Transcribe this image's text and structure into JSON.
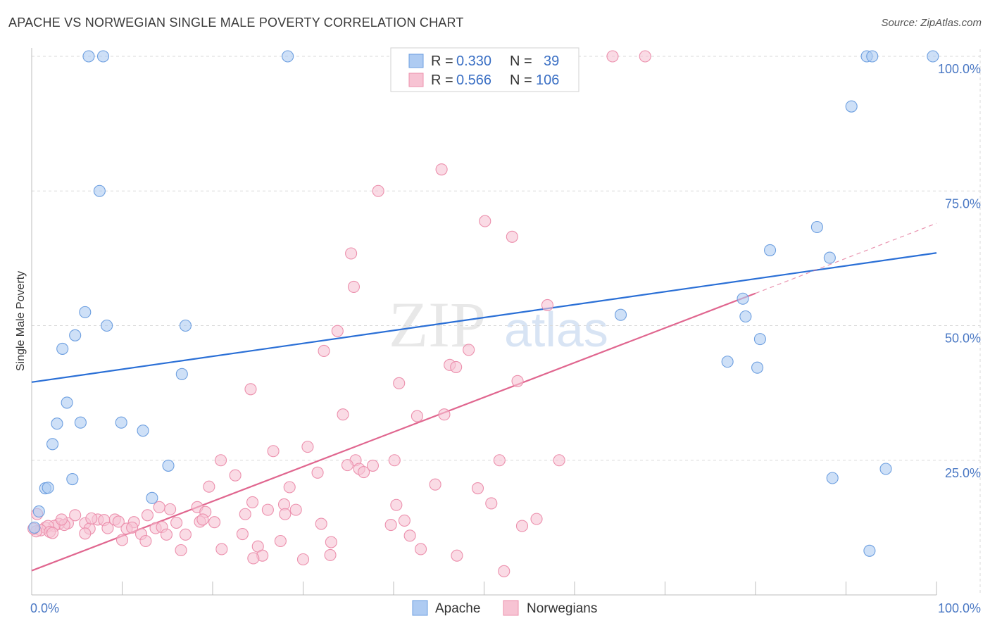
{
  "title": "APACHE VS NORWEGIAN SINGLE MALE POVERTY CORRELATION CHART",
  "source": "Source: ZipAtlas.com",
  "watermark": {
    "zip": "ZIP",
    "atlas": "atlas"
  },
  "colors": {
    "apache_fill": "#aecbf2",
    "apache_stroke": "#6d9fe0",
    "apache_line": "#2a6fd6",
    "norw_fill": "#f7c3d3",
    "norw_stroke": "#ec90ad",
    "norw_line": "#e0668f",
    "grid": "#d9d9d9",
    "tick_label": "#4a78c4"
  },
  "legend": {
    "r_label": "R =",
    "n_label": "N =",
    "rows": [
      {
        "series": "Apache",
        "r": "0.330",
        "n": "39"
      },
      {
        "series": "Norwegians",
        "r": "0.566",
        "n": "106"
      }
    ]
  },
  "chart_data": {
    "type": "scatter",
    "title": "APACHE VS NORWEGIAN SINGLE MALE POVERTY CORRELATION CHART",
    "xlabel": "",
    "ylabel": "Single Male Poverty",
    "xlim": [
      0,
      100
    ],
    "ylim": [
      0,
      100
    ],
    "x_tick_labels": [
      "0.0%",
      "100.0%"
    ],
    "y_ticks": [
      25,
      50,
      75,
      100
    ],
    "y_tick_labels": [
      "25.0%",
      "50.0%",
      "75.0%",
      "100.0%"
    ],
    "grid": true,
    "series": [
      {
        "name": "Apache",
        "r": 0.33,
        "n": 39,
        "trend": {
          "x0": 0,
          "y0": 39.5,
          "x1": 100,
          "y1": 63.5
        },
        "points": [
          [
            6.3,
            100
          ],
          [
            7.9,
            100
          ],
          [
            28.3,
            100
          ],
          [
            92.3,
            100
          ],
          [
            92.9,
            100
          ],
          [
            99.6,
            100
          ],
          [
            90.6,
            90.7
          ],
          [
            7.5,
            75.0
          ],
          [
            86.8,
            68.3
          ],
          [
            81.6,
            64.0
          ],
          [
            88.2,
            62.6
          ],
          [
            78.6,
            55.0
          ],
          [
            5.9,
            52.5
          ],
          [
            78.9,
            51.7
          ],
          [
            65.1,
            52.0
          ],
          [
            8.3,
            50.0
          ],
          [
            17.0,
            50.0
          ],
          [
            4.8,
            48.2
          ],
          [
            3.4,
            45.7
          ],
          [
            80.5,
            47.5
          ],
          [
            76.9,
            43.3
          ],
          [
            80.2,
            42.2
          ],
          [
            16.6,
            41.0
          ],
          [
            3.9,
            35.7
          ],
          [
            2.8,
            31.8
          ],
          [
            5.4,
            32.0
          ],
          [
            9.9,
            32.0
          ],
          [
            12.3,
            30.5
          ],
          [
            2.3,
            28.0
          ],
          [
            15.1,
            24.0
          ],
          [
            94.4,
            23.4
          ],
          [
            4.5,
            21.5
          ],
          [
            88.5,
            21.7
          ],
          [
            1.5,
            19.8
          ],
          [
            1.8,
            19.9
          ],
          [
            13.3,
            18.0
          ],
          [
            0.8,
            15.5
          ],
          [
            0.3,
            12.5
          ],
          [
            92.6,
            8.2
          ]
        ]
      },
      {
        "name": "Norwegians",
        "r": 0.566,
        "n": 106,
        "trend": {
          "x0": 0,
          "y0": 4.5,
          "x1": 80,
          "y1": 56.0,
          "dash_x1": 100,
          "dash_y1": 69.0
        },
        "points": [
          [
            64.2,
            100
          ],
          [
            67.8,
            100
          ],
          [
            45.3,
            79.0
          ],
          [
            38.3,
            75.0
          ],
          [
            50.1,
            69.4
          ],
          [
            53.1,
            66.5
          ],
          [
            35.3,
            63.4
          ],
          [
            35.6,
            57.2
          ],
          [
            57.0,
            53.8
          ],
          [
            33.8,
            49.0
          ],
          [
            32.3,
            45.3
          ],
          [
            48.3,
            45.5
          ],
          [
            46.2,
            42.7
          ],
          [
            46.9,
            42.3
          ],
          [
            40.6,
            39.3
          ],
          [
            53.7,
            39.7
          ],
          [
            24.2,
            38.2
          ],
          [
            34.4,
            33.5
          ],
          [
            42.6,
            33.2
          ],
          [
            45.6,
            33.5
          ],
          [
            30.5,
            27.5
          ],
          [
            26.7,
            26.7
          ],
          [
            20.9,
            25.0
          ],
          [
            35.8,
            25.0
          ],
          [
            40.1,
            25.0
          ],
          [
            51.7,
            25.0
          ],
          [
            58.3,
            25.0
          ],
          [
            34.9,
            24.1
          ],
          [
            37.7,
            24.0
          ],
          [
            36.2,
            23.4
          ],
          [
            36.7,
            22.8
          ],
          [
            31.6,
            22.7
          ],
          [
            22.5,
            22.2
          ],
          [
            44.6,
            20.5
          ],
          [
            19.6,
            20.1
          ],
          [
            28.5,
            20.0
          ],
          [
            49.3,
            19.8
          ],
          [
            24.4,
            17.2
          ],
          [
            50.8,
            17.0
          ],
          [
            27.9,
            16.8
          ],
          [
            40.3,
            16.7
          ],
          [
            18.3,
            16.3
          ],
          [
            14.1,
            16.3
          ],
          [
            15.3,
            15.9
          ],
          [
            29.2,
            15.8
          ],
          [
            26.1,
            15.8
          ],
          [
            19.2,
            15.4
          ],
          [
            23.6,
            15.0
          ],
          [
            28.0,
            15.0
          ],
          [
            12.8,
            14.8
          ],
          [
            4.8,
            14.8
          ],
          [
            7.3,
            14.0
          ],
          [
            9.2,
            14.0
          ],
          [
            11.3,
            13.5
          ],
          [
            8.0,
            13.9
          ],
          [
            9.6,
            13.6
          ],
          [
            16.0,
            13.4
          ],
          [
            18.6,
            13.6
          ],
          [
            20.2,
            13.5
          ],
          [
            18.9,
            14.0
          ],
          [
            32.0,
            13.2
          ],
          [
            5.9,
            13.3
          ],
          [
            4.0,
            13.3
          ],
          [
            3.0,
            13.2
          ],
          [
            3.6,
            13.0
          ],
          [
            2.5,
            12.8
          ],
          [
            1.5,
            12.5
          ],
          [
            1.8,
            12.8
          ],
          [
            6.4,
            12.3
          ],
          [
            8.4,
            12.4
          ],
          [
            10.5,
            12.3
          ],
          [
            13.7,
            12.4
          ],
          [
            11.1,
            12.5
          ],
          [
            14.4,
            12.6
          ],
          [
            39.7,
            13.0
          ],
          [
            41.2,
            13.8
          ],
          [
            54.2,
            12.8
          ],
          [
            55.8,
            14.1
          ],
          [
            1.0,
            12.0
          ],
          [
            2.0,
            11.7
          ],
          [
            2.3,
            11.5
          ],
          [
            5.9,
            11.4
          ],
          [
            12.1,
            11.3
          ],
          [
            14.9,
            11.2
          ],
          [
            17.0,
            11.2
          ],
          [
            23.3,
            11.3
          ],
          [
            41.8,
            11.0
          ],
          [
            10.0,
            10.2
          ],
          [
            12.6,
            10.0
          ],
          [
            27.5,
            10.0
          ],
          [
            33.1,
            9.8
          ],
          [
            25.0,
            9.0
          ],
          [
            21.0,
            8.5
          ],
          [
            16.5,
            8.3
          ],
          [
            43.0,
            8.5
          ],
          [
            25.5,
            7.3
          ],
          [
            33.0,
            7.4
          ],
          [
            47.0,
            7.3
          ],
          [
            24.5,
            6.8
          ],
          [
            30.0,
            6.6
          ],
          [
            52.2,
            4.4
          ],
          [
            0.5,
            11.8
          ],
          [
            0.2,
            12.3
          ],
          [
            3.3,
            14.0
          ],
          [
            6.6,
            14.2
          ],
          [
            0.6,
            15.0
          ]
        ]
      }
    ],
    "legend_entries": [
      "Apache",
      "Norwegians"
    ]
  }
}
